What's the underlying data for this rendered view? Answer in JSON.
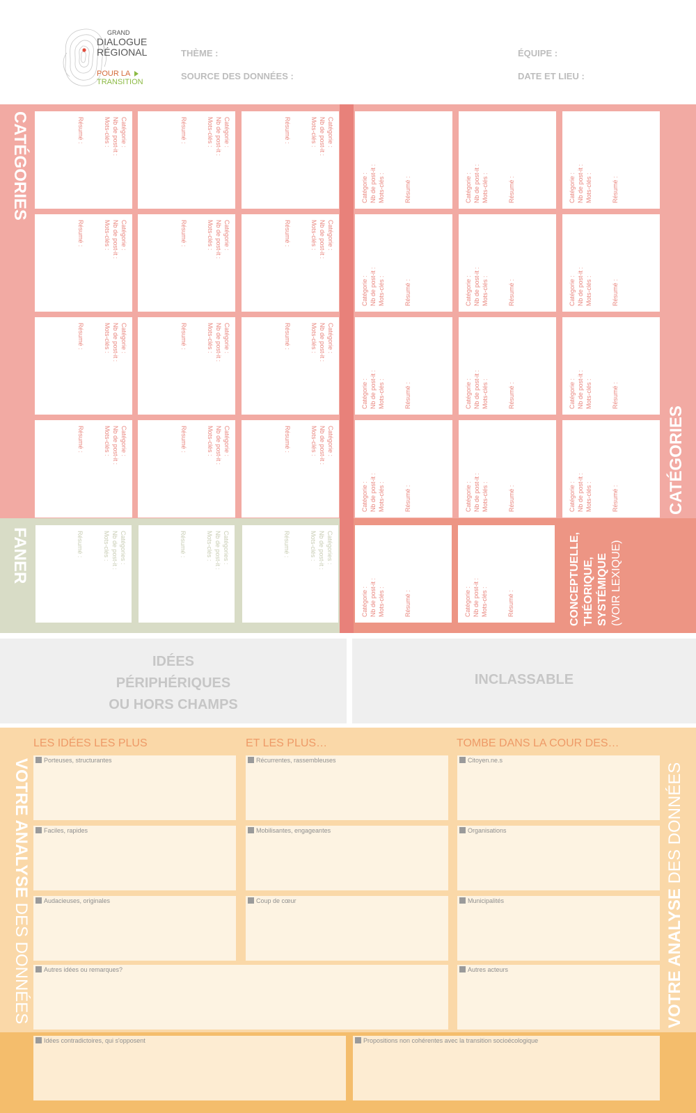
{
  "logo": {
    "line1": "GRAND",
    "line2": "DIALOGUE",
    "line3": "RÉGIONAL",
    "line4": "POUR LA",
    "line5": "TRANSITION"
  },
  "header": {
    "theme": "THÈME :",
    "source": "SOURCE DES DONNÉES :",
    "team": "ÉQUIPE :",
    "date": "DATE ET LIEU :"
  },
  "card_labels": {
    "category": "Catégorie :",
    "postits": "Nb de post-it :",
    "keywords": "Mots-clés :",
    "summary": "Résumé :",
    "category_plural": "Catégories :"
  },
  "bands": {
    "categories_left": "CATÉGORIES",
    "categories_right": "CATÉGORIES",
    "faner": "FANER",
    "concept_line1": "CONCEPTUELLE,",
    "concept_line2": "THÉORIQUE,",
    "concept_line3": "SYSTÉMIQUE",
    "concept_line4": "(VOIR LEXIQUE)"
  },
  "peripheral": {
    "left_line1": "IDÉES",
    "left_line2": "PÉRIPHÉRIQUES",
    "left_line3": "OU HORS CHAMPS",
    "right": "INCLASSABLE"
  },
  "analysis": {
    "side_bold": "VOTRE ANALYSE",
    "side_light": " DES DONNÉES",
    "col1_head": "LES IDÉES LES PLUS",
    "col2_head": "ET LES PLUS…",
    "col3_head": "TOMBE DANS LA COUR DES…",
    "col1": [
      "Porteuses, structurantes",
      "Faciles, rapides",
      "Audacieuses, originales"
    ],
    "col2": [
      "Récurrentes, rassembleuses",
      "Mobilisantes, engageantes",
      "Coup de cœur"
    ],
    "col3": [
      "Citoyen.ne.s",
      "Organisations",
      "Municipalités",
      "Autres acteurs"
    ],
    "other_ideas": "Autres idées ou remarques?",
    "contradictory": "Idées contradictoires, qui s'opposent",
    "incoherent": "Propositions non cohérentes avec la transition socioécologique"
  },
  "colors": {
    "categories": "#f2aaa3",
    "divider": "#e8817a",
    "faner": "#d8dcc6",
    "concept": "#ed9584",
    "analysis": "#fad8a8",
    "bottom": "#f4bd6c"
  }
}
